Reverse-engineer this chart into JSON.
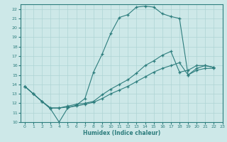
{
  "xlabel": "Humidex (Indice chaleur)",
  "xlim": [
    -0.5,
    23
  ],
  "ylim": [
    10,
    22.5
  ],
  "xticks": [
    0,
    1,
    2,
    3,
    4,
    5,
    6,
    7,
    8,
    9,
    10,
    11,
    12,
    13,
    14,
    15,
    16,
    17,
    18,
    19,
    20,
    21,
    22,
    23
  ],
  "yticks": [
    10,
    11,
    12,
    13,
    14,
    15,
    16,
    17,
    18,
    19,
    20,
    21,
    22
  ],
  "background_color": "#cde8e8",
  "line_color": "#2d7d7d",
  "grid_color": "#aed4d4",
  "line1_x": [
    0,
    1,
    2,
    3,
    4,
    5,
    6,
    7,
    8,
    9,
    10,
    11,
    12,
    13,
    14,
    15,
    16,
    17,
    18,
    19,
    20,
    21,
    22
  ],
  "line1_y": [
    13.8,
    13.0,
    12.2,
    11.4,
    10.0,
    11.5,
    11.8,
    12.5,
    15.3,
    17.2,
    19.4,
    21.1,
    21.4,
    22.2,
    22.3,
    22.2,
    21.5,
    21.2,
    21.0,
    15.0,
    15.7,
    16.0,
    15.8
  ],
  "line2_x": [
    0,
    1,
    2,
    3,
    4,
    5,
    6,
    7,
    8,
    9,
    10,
    11,
    12,
    13,
    14,
    15,
    16,
    17,
    18,
    19,
    20,
    21,
    22
  ],
  "line2_y": [
    13.8,
    13.0,
    12.2,
    11.5,
    11.5,
    11.7,
    11.9,
    12.0,
    12.2,
    12.9,
    13.5,
    14.0,
    14.5,
    15.2,
    16.0,
    16.5,
    17.1,
    17.5,
    15.3,
    15.5,
    16.0,
    16.0,
    15.8
  ],
  "line3_x": [
    0,
    1,
    2,
    3,
    4,
    5,
    6,
    7,
    8,
    9,
    10,
    11,
    12,
    13,
    14,
    15,
    16,
    17,
    18,
    19,
    20,
    21,
    22
  ],
  "line3_y": [
    13.8,
    13.0,
    12.2,
    11.5,
    11.5,
    11.6,
    11.7,
    11.9,
    12.1,
    12.5,
    13.0,
    13.4,
    13.8,
    14.3,
    14.8,
    15.3,
    15.7,
    16.0,
    16.3,
    15.0,
    15.5,
    15.7,
    15.7
  ]
}
